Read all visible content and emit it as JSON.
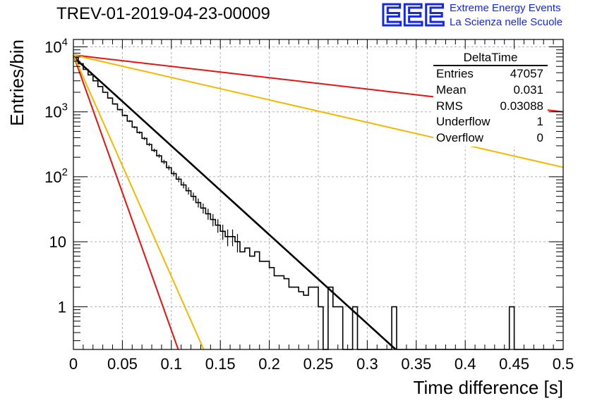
{
  "title": "TREV-01-2019-04-23-00009",
  "logo": {
    "mark": "EEE",
    "line1": "Extreme Energy Events",
    "line2": "La Scienza nelle Scuole",
    "color": "#1428e6"
  },
  "stats_box": {
    "title": "DeltaTime",
    "rows": [
      {
        "label": "Entries",
        "value": "47057"
      },
      {
        "label": "Mean",
        "value": "0.031"
      },
      {
        "label": "RMS",
        "value": "0.03088"
      },
      {
        "label": "Underflow",
        "value": "1"
      },
      {
        "label": "Overflow",
        "value": "0"
      }
    ]
  },
  "chart_data": {
    "type": "histogram",
    "title": "TREV-01-2019-04-23-00009",
    "xlabel": "Time difference [s]",
    "ylabel": "Entries/bin",
    "xlim": [
      0,
      0.5
    ],
    "ylim": [
      0.22,
      13000
    ],
    "yscale": "log",
    "grid": true,
    "x_ticks": [
      "0",
      "0.05",
      "0.1",
      "0.15",
      "0.2",
      "0.25",
      "0.3",
      "0.35",
      "0.4",
      "0.45",
      "0.5"
    ],
    "y_ticks": [
      {
        "value": 1,
        "label": "1"
      },
      {
        "value": 10,
        "label": "10"
      },
      {
        "value": 100,
        "label": "10^2"
      },
      {
        "value": 1000,
        "label": "10^3"
      },
      {
        "value": 10000,
        "label": "10^4"
      }
    ],
    "bin_width": 0.005,
    "histogram": {
      "color": "#000000",
      "values": [
        6800,
        5500,
        4500,
        3700,
        3000,
        2450,
        2000,
        1630,
        1320,
        1080,
        880,
        720,
        580,
        480,
        390,
        315,
        255,
        210,
        170,
        138,
        112,
        92,
        75,
        61,
        50,
        40,
        33,
        27,
        22,
        18,
        14.5,
        12,
        12,
        10,
        7,
        8,
        6,
        7,
        5,
        5,
        4,
        3,
        3,
        2.7,
        2,
        2,
        1.7,
        1.5,
        2,
        2,
        1,
        0,
        2,
        1,
        1,
        0,
        0,
        1,
        0,
        0,
        0,
        0,
        0,
        0,
        0,
        1,
        0,
        0,
        0,
        0,
        0,
        0,
        0,
        0,
        0,
        0,
        0,
        0,
        0,
        0,
        0,
        0,
        0,
        0,
        0,
        0,
        0,
        0,
        0,
        1,
        0,
        0,
        0,
        0,
        0,
        0,
        0,
        0,
        0,
        0
      ]
    },
    "lines": [
      {
        "color": "#000000",
        "x": [
          0,
          0.329
        ],
        "y": [
          7000,
          0.22
        ]
      },
      {
        "color": "#e8120e",
        "x": [
          0,
          0.107
        ],
        "y": [
          7500,
          0.22
        ]
      },
      {
        "color": "#f5b800",
        "x": [
          0,
          0.133
        ],
        "y": [
          7500,
          0.22
        ]
      },
      {
        "color": "#e8120e",
        "x": [
          0,
          0.5
        ],
        "y": [
          7500,
          1000
        ]
      },
      {
        "color": "#f5b800",
        "x": [
          0,
          0.5
        ],
        "y": [
          7500,
          140
        ]
      }
    ]
  }
}
